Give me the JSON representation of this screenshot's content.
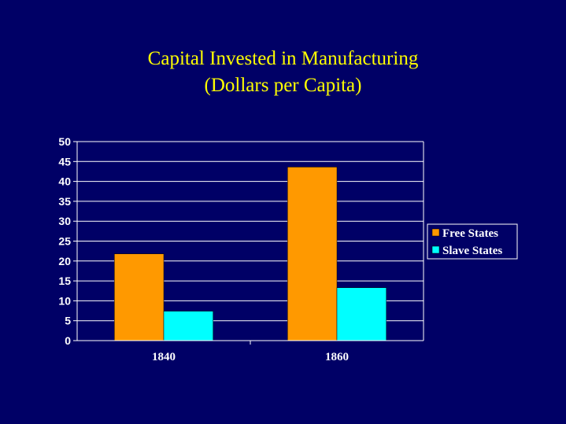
{
  "chart_data": {
    "type": "bar",
    "title": "Capital Invested in Manufacturing",
    "subtitle": "(Dollars per Capita)",
    "categories": [
      "1840",
      "1860"
    ],
    "series": [
      {
        "name": "Free States",
        "values": [
          21.8,
          43.6
        ],
        "color": "#ff9900"
      },
      {
        "name": "Slave States",
        "values": [
          7.4,
          13.3
        ],
        "color": "#00ffff"
      }
    ],
    "ylim": [
      0,
      50
    ],
    "yticks": [
      "0",
      "5",
      "10",
      "15",
      "20",
      "25",
      "30",
      "35",
      "40",
      "45",
      "50"
    ],
    "grid": true,
    "legend_position": "right",
    "xlabel": "",
    "ylabel": ""
  }
}
